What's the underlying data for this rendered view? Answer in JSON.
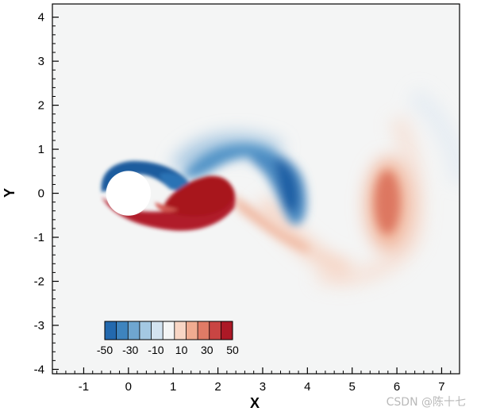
{
  "chart_data": {
    "type": "heatmap",
    "title": "",
    "xlabel": "X",
    "ylabel": "Y",
    "xlim": [
      -1.7,
      7.4
    ],
    "ylim": [
      -4.1,
      4.3
    ],
    "x_ticks": [
      -1,
      0,
      1,
      2,
      3,
      4,
      5,
      6,
      7
    ],
    "y_ticks": [
      4,
      3,
      2,
      1,
      0,
      -1,
      -2,
      -3,
      -4
    ],
    "grid": false,
    "background_color": "#f4f5f5",
    "cylinder": {
      "center_x": 0,
      "center_y": 0,
      "radius": 0.5,
      "fill_color": "#ffffff"
    },
    "colorbar": {
      "orientation": "horizontal",
      "placement": "bottom-left, inside plot area",
      "range": [
        -50,
        50
      ],
      "tick_labels": [
        "-50",
        "-30",
        "-10",
        "10",
        "30",
        "50"
      ],
      "colors": [
        "#2369ae",
        "#3e84be",
        "#6fa6d0",
        "#a4c8e2",
        "#d3e3f0",
        "#f4f5f5",
        "#f8d6c5",
        "#f0ac91",
        "#e07b66",
        "#c94543",
        "#ac1926"
      ]
    },
    "vortex_regions": [
      {
        "sign": "negative",
        "peak_value": -50,
        "description_x": 0.8,
        "description_y": 0.35
      },
      {
        "sign": "positive",
        "peak_value": 50,
        "description_x": 1.6,
        "description_y": -0.15
      },
      {
        "sign": "negative",
        "peak_value": -45,
        "description_x": 3.6,
        "description_y": 0.0
      },
      {
        "sign": "positive",
        "peak_value": 35,
        "description_x": 5.9,
        "description_y": -0.2
      }
    ]
  },
  "watermark": "CSDN @陈十七",
  "colors": {
    "negative": "#2166ac",
    "positive": "#b2182b",
    "neutral": "#f4f5f5",
    "axis": "#000000"
  }
}
